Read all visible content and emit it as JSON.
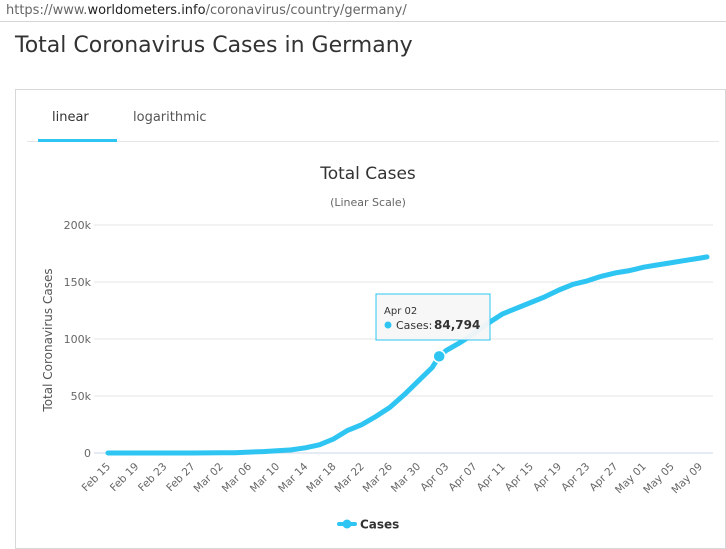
{
  "browser": {
    "url_prefix": "https://www.",
    "url_domain": "worldometers.info",
    "url_path": "/coronavirus/country/germany/"
  },
  "page": {
    "title": "Total Coronavirus Cases in Germany"
  },
  "tabs": {
    "linear_label": "linear",
    "log_label": "logarithmic",
    "active": "linear"
  },
  "colors": {
    "series": "#2ec5f3",
    "tab_underline": "#2ec5f3"
  },
  "tooltip": {
    "date": "Apr 02",
    "label": "Cases:",
    "value": "84,794"
  },
  "chart_data": {
    "type": "line",
    "title": "Total Cases",
    "subtitle": "(Linear Scale)",
    "ylabel": "Total Coronavirus Cases",
    "ylim": [
      0,
      200000
    ],
    "yticks": [
      0,
      50000,
      100000,
      150000,
      200000
    ],
    "ytick_labels": [
      "0",
      "50k",
      "100k",
      "150k",
      "200k"
    ],
    "xtick_labels": [
      "Feb 15",
      "Feb 19",
      "Feb 23",
      "Feb 27",
      "Mar 02",
      "Mar 06",
      "Mar 10",
      "Mar 14",
      "Mar 18",
      "Mar 22",
      "Mar 26",
      "Mar 30",
      "Apr 03",
      "Apr 07",
      "Apr 11",
      "Apr 15",
      "Apr 19",
      "Apr 23",
      "Apr 27",
      "May 01",
      "May 05",
      "May 09"
    ],
    "legend": "bottom-center",
    "grid": true,
    "series": [
      {
        "name": "Cases",
        "x": [
          "Feb 15",
          "Feb 19",
          "Feb 23",
          "Feb 27",
          "Mar 02",
          "Mar 04",
          "Mar 06",
          "Mar 08",
          "Mar 10",
          "Mar 12",
          "Mar 14",
          "Mar 16",
          "Mar 18",
          "Mar 20",
          "Mar 22",
          "Mar 24",
          "Mar 26",
          "Mar 28",
          "Mar 30",
          "Apr 01",
          "Apr 02",
          "Apr 03",
          "Apr 05",
          "Apr 07",
          "Apr 09",
          "Apr 11",
          "Apr 13",
          "Apr 15",
          "Apr 17",
          "Apr 19",
          "Apr 21",
          "Apr 23",
          "Apr 25",
          "Apr 27",
          "Apr 29",
          "May 01",
          "May 03",
          "May 05",
          "May 07",
          "May 09",
          "May 10"
        ],
        "values": [
          16,
          16,
          16,
          26,
          150,
          262,
          800,
          1200,
          1900,
          2700,
          4600,
          7200,
          12300,
          19800,
          24800,
          32000,
          40000,
          51000,
          63000,
          75000,
          84794,
          90000,
          97000,
          105000,
          114000,
          122000,
          127000,
          132000,
          137000,
          143000,
          148000,
          151000,
          155000,
          158000,
          160000,
          163000,
          165000,
          167000,
          169000,
          171000,
          172000
        ]
      }
    ]
  }
}
